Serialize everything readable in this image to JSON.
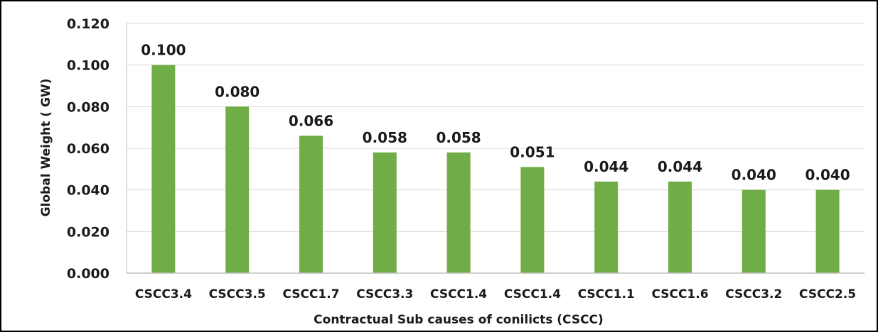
{
  "chart_data": {
    "type": "bar",
    "categories": [
      "CSCC3.4",
      "CSCC3.5",
      "CSCC1.7",
      "CSCC3.3",
      "CSCC1.4",
      "CSCC1.4",
      "CSCC1.1",
      "CSCC1.6",
      "CSCC3.2",
      "CSCC2.5"
    ],
    "values": [
      0.1,
      0.08,
      0.066,
      0.058,
      0.058,
      0.051,
      0.044,
      0.044,
      0.04,
      0.04
    ],
    "value_labels": [
      "0.100",
      "0.080",
      "0.066",
      "0.058",
      "0.058",
      "0.051",
      "0.044",
      "0.044",
      "0.040",
      "0.040"
    ],
    "xlabel": "Contractual Sub causes of conilicts (CSCC)",
    "ylabel": "Global Weight ( GW)",
    "ylim": [
      0,
      0.12
    ],
    "yticks": [
      "0.000",
      "0.020",
      "0.040",
      "0.060",
      "0.080",
      "0.100",
      "0.120"
    ],
    "grid": true,
    "colors": {
      "bar": "#70ad47",
      "grid": "#d9d9d9",
      "axis": "#bfbfbf"
    }
  }
}
